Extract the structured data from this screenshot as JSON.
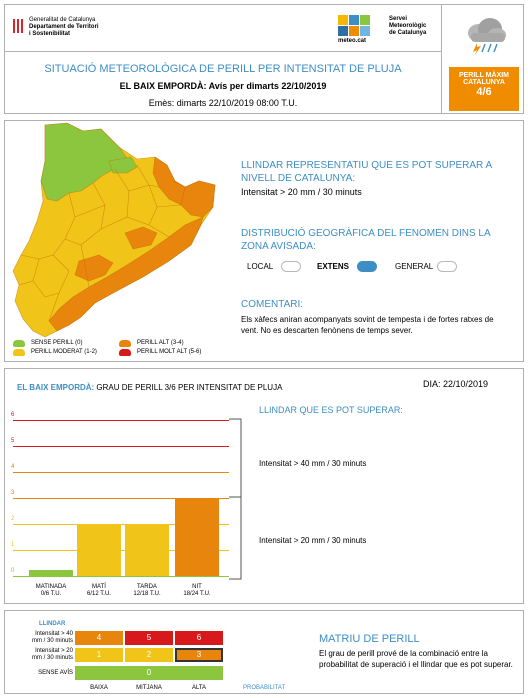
{
  "header": {
    "org_line1": "Generalitat de Catalunya",
    "org_line2": "Departament de Territori",
    "org_line3": "i Sostenibilitat",
    "smc_line1": "Servei",
    "smc_line2": "Meteorològic",
    "smc_line3": "de Catalunya",
    "smc_site": "meteo.cat",
    "title": "SITUACIÓ METEOROLÒGICA DE PERILL PER INTENSITAT DE PLUJA",
    "subtitle": "EL BAIX EMPORDÀ: Avís per dimarts 22/10/2019",
    "issued": "Emès: dimarts 22/10/2019 08:00 T.U.",
    "max_label_1": "PERILL MÀXIM",
    "max_label_2": "CATALUNYA",
    "max_value": "4/6",
    "icon": "storm-cloud-icon"
  },
  "map_panel": {
    "threshold_heading": "LLINDAR REPRESENTATIU QUE ES POT SUPERAR A NIVELL DE CATALUNYA:",
    "threshold_value": "Intensitat > 20 mm / 30 minuts",
    "distribution_heading": "DISTRIBUCIÓ GEOGRÀFICA DEL FENOMEN DINS LA ZONA AVISADA:",
    "distribution_options": [
      {
        "label": "LOCAL",
        "active": false
      },
      {
        "label": "EXTENS",
        "active": true
      },
      {
        "label": "GENERAL",
        "active": false
      }
    ],
    "comment_heading": "COMENTARI:",
    "comment_text": "Els xàfecs aniran acompanyats sovint de tempesta i de fortes ratxes de vent. No es descarten fenònens de temps sever.",
    "legend": [
      {
        "label": "SENSE PERILL (0)",
        "color": "#8cc63f"
      },
      {
        "label": "PERILL MODERAT (1-2)",
        "color": "#f0c419"
      },
      {
        "label": "PERILL ALT (3-4)",
        "color": "#e8850c"
      },
      {
        "label": "PERILL MOLT ALT (5-6)",
        "color": "#d7191c"
      }
    ],
    "map_colors": {
      "green": "#8cc63f",
      "yellow": "#f0c419",
      "orange": "#e8850c"
    }
  },
  "chart_panel": {
    "title_zone": "EL BAIX EMPORDÀ:",
    "title_rest": " GRAU DE PERILL 3/6 PER INTENSITAT DE PLUJA",
    "date": "DIA: 22/10/2019",
    "threshold_heading": "LLINDAR QUE ES POT SUPERAR:",
    "bracket_upper_text": "Intensitat > 40 mm / 30 minuts",
    "bracket_lower_text": "Intensitat > 20 mm / 30 minuts"
  },
  "chart_data": {
    "type": "bar",
    "categories": [
      "MATINADA 0/6 T.U.",
      "MATÍ 6/12 T.U.",
      "TARDA 12/18 T.U.",
      "NIT 18/24 T.U."
    ],
    "category_lines": [
      [
        "MATINADA",
        "0/6 T.U."
      ],
      [
        "MATÍ",
        "6/12 T.U."
      ],
      [
        "TARDA",
        "12/18 T.U."
      ],
      [
        "NIT",
        "18/24 T.U."
      ]
    ],
    "values": [
      0,
      2,
      2,
      3
    ],
    "ylim": [
      0,
      6
    ],
    "yticks": [
      0,
      1,
      2,
      3,
      4,
      5,
      6
    ],
    "level_colors": [
      "#8cc63f",
      "#f0c419",
      "#f0c419",
      "#e8850c",
      "#e8850c",
      "#d7191c",
      "#d7191c"
    ],
    "xlabel": "",
    "ylabel": "",
    "title": ""
  },
  "matrix_panel": {
    "llindar_label": "LLINDAR",
    "row_labels": [
      [
        "Intensitat > 40",
        "mm / 30 minuts"
      ],
      [
        "Intensitat > 20",
        "mm / 30 minuts"
      ],
      [
        "SENSE AVÍS"
      ]
    ],
    "rows": [
      [
        {
          "v": "4",
          "c": "#e8850c"
        },
        {
          "v": "5",
          "c": "#d7191c"
        },
        {
          "v": "6",
          "c": "#d7191c"
        }
      ],
      [
        {
          "v": "1",
          "c": "#f0c419"
        },
        {
          "v": "2",
          "c": "#f0c419"
        },
        {
          "v": "3",
          "c": "#e8850c",
          "selected": true
        }
      ],
      [
        {
          "v": "0",
          "c": "#8cc63f"
        }
      ]
    ],
    "col_labels": [
      "BAIXA",
      "MITJANA",
      "ALTA"
    ],
    "prob_label": "PROBABILITAT",
    "heading": "MATRIU DE PERILL",
    "text": "El grau de perill prové de la combinació entre la probabilitat de superació i el llindar que es pot superar."
  }
}
